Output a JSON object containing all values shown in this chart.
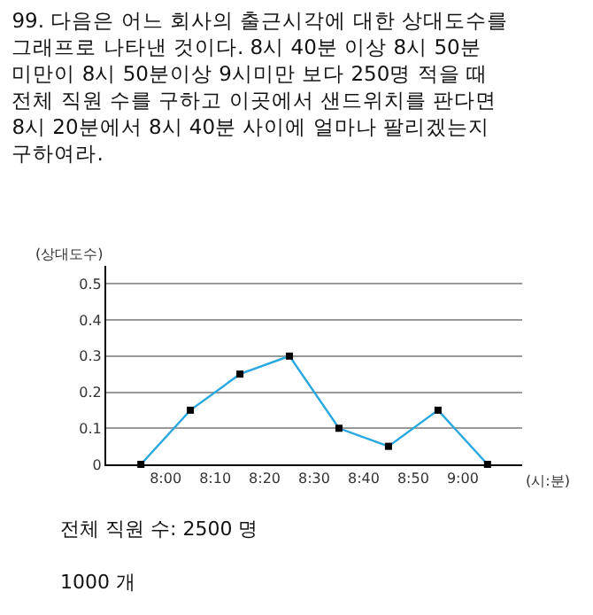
{
  "chart_data": {
    "type": "line",
    "title": "99. 다음은 어느 회사의 출근시각에 대한 상대도수를\n그래프로 나타낸 것이다. 8시 40분 이상 8시 50분\n미만이 8시 50분이상 9시미만 보다 250명 적을 때\n전체 직원 수를 구하고 이곳에서 샌드위치를 판다면\n8시 20분에서 8시 40분 사이에 얼마나 팔리겠는지\n구하여라.",
    "xlabel": "(시:분)",
    "ylabel": "(상대도수)",
    "x": [
      7.9167,
      8.0833,
      8.25,
      8.4167,
      8.5833,
      8.75,
      8.9167,
      9.0833
    ],
    "series": [
      {
        "color": "#29a8e0",
        "values": [
          0,
          0.15,
          0.25,
          0.3,
          0.1,
          0.05,
          0.15,
          0
        ]
      }
    ],
    "xlim": [
      7.8,
      9.2
    ],
    "xticks": [
      {
        "value": 8.0,
        "label": "8:00"
      },
      {
        "value": 8.1667,
        "label": "8:10"
      },
      {
        "value": 8.3333,
        "label": "8:20"
      },
      {
        "value": 8.5,
        "label": "8:30"
      },
      {
        "value": 8.6667,
        "label": "8:40"
      },
      {
        "value": 8.8333,
        "label": "8:50"
      },
      {
        "value": 9.0,
        "label": "9:00"
      }
    ],
    "ylim": [
      0,
      0.55
    ],
    "yticks": [
      0,
      0.1,
      0.2,
      0.3,
      0.4,
      0.5
    ],
    "grid": "y",
    "marker": "square",
    "line_style": "solid",
    "annotations": [
      "전체 직원 수: 2500 명",
      "1000 개"
    ]
  }
}
